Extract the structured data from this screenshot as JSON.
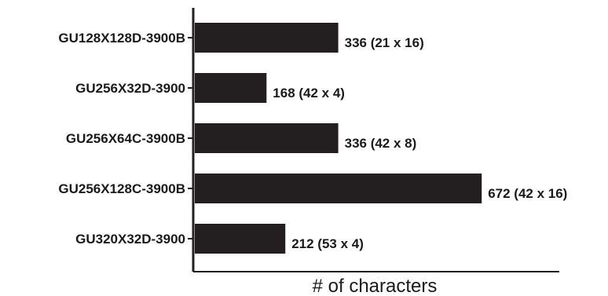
{
  "chart_data": {
    "type": "bar",
    "orientation": "horizontal",
    "categories": [
      "GU128X128D-3900B",
      "GU256X32D-3900",
      "GU256X64C-3900B",
      "GU256X128C-3900B",
      "GU320X32D-3900"
    ],
    "values": [
      336,
      168,
      336,
      672,
      212
    ],
    "data_labels": [
      "336 (21 x 16)",
      "168 (42 x 4)",
      "336 (42 x 8)",
      "672 (42 x 16)",
      "212 (53 x 4)"
    ],
    "xlabel": "# of characters",
    "ylabel": "",
    "xlim": [
      0,
      840
    ],
    "grid": false,
    "legend": "none",
    "bar_color": "#231f20"
  }
}
